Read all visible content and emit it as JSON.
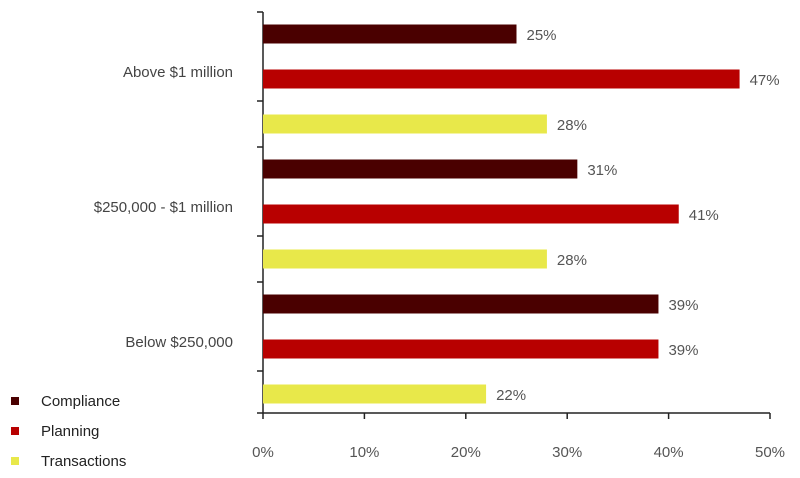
{
  "chart_data": {
    "type": "bar",
    "orientation": "horizontal",
    "categories": [
      "Above $1 million",
      "$250,000 - $1 million",
      "Below $250,000"
    ],
    "series": [
      {
        "name": "Compliance",
        "color": "#4a0000",
        "values": [
          25,
          31,
          39
        ]
      },
      {
        "name": "Planning",
        "color": "#b80000",
        "values": [
          47,
          41,
          39
        ]
      },
      {
        "name": "Transactions",
        "color": "#e8e84a",
        "values": [
          28,
          28,
          22
        ]
      }
    ],
    "xlim": [
      0,
      50
    ],
    "xticks": [
      0,
      10,
      20,
      30,
      40,
      50
    ],
    "value_suffix": "%",
    "grid": false,
    "legend_position": "bottom-left"
  }
}
